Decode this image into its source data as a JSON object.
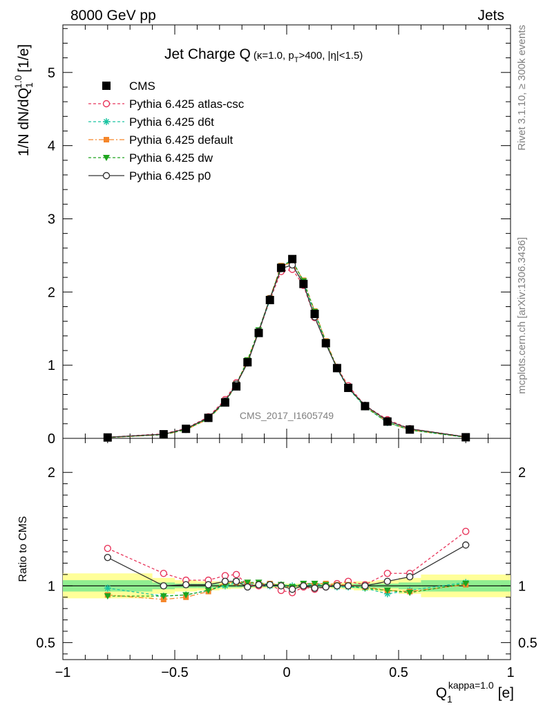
{
  "header": {
    "energy_label": "8000 GeV pp",
    "category_label": "Jets",
    "side_label_top": "Rivet 3.1.10, ≥ 300k events",
    "side_label_bottom": "mcplots.cern.ch [arXiv:1306.3436]",
    "watermark": "CMS_2017_I1605749"
  },
  "chart_data": [
    {
      "type": "scatter",
      "title_main": "Jet Charge Q",
      "title_detail": "(κ=1.0, p",
      "title_sub": "T",
      "title_rest": ">400, |η|<1.5)",
      "ylabel": "1/N dN/dQ",
      "ylabel_sub": "1",
      "ylabel_sup": "1.0",
      "ylabel_unit": "[1/e]",
      "xlim": [
        -1,
        1
      ],
      "ylim": [
        0,
        5.65
      ],
      "yticks": [
        "0",
        "1",
        "2",
        "3",
        "4",
        "5"
      ],
      "x": [
        -0.8,
        -0.55,
        -0.45,
        -0.35,
        -0.275,
        -0.225,
        -0.175,
        -0.125,
        -0.075,
        -0.025,
        0.025,
        0.075,
        0.125,
        0.175,
        0.225,
        0.275,
        0.35,
        0.45,
        0.55,
        0.8
      ],
      "legend": [
        {
          "label": "CMS",
          "color": "#000000",
          "marker": "square",
          "dash": "none"
        },
        {
          "label": "Pythia 6.425 atlas-csc",
          "color": "#e8345a",
          "marker": "circle",
          "dash": "4,3"
        },
        {
          "label": "Pythia 6.425 d6t",
          "color": "#19c3a0",
          "marker": "star",
          "dash": "4,3"
        },
        {
          "label": "Pythia 6.425 default",
          "color": "#f5862a",
          "marker": "square",
          "dash": "7,3,2,3"
        },
        {
          "label": "Pythia 6.425 dw",
          "color": "#1ea51e",
          "marker": "triangle",
          "dash": "4,3"
        },
        {
          "label": "Pythia 6.425 p0",
          "color": "#333333",
          "marker": "circle",
          "dash": "none"
        }
      ],
      "series": [
        {
          "values": [
            0.012,
            0.056,
            0.13,
            0.28,
            0.49,
            0.71,
            1.04,
            1.44,
            1.89,
            2.33,
            2.45,
            2.11,
            1.7,
            1.3,
            0.96,
            0.69,
            0.44,
            0.23,
            0.12,
            0.015
          ]
        },
        {
          "values": [
            0.016,
            0.062,
            0.136,
            0.294,
            0.53,
            0.76,
            1.04,
            1.45,
            1.89,
            2.28,
            2.31,
            2.09,
            1.65,
            1.3,
            0.97,
            0.72,
            0.45,
            0.255,
            0.133,
            0.022
          ]
        },
        {
          "values": [
            0.012,
            0.052,
            0.12,
            0.27,
            0.49,
            0.73,
            1.06,
            1.46,
            1.89,
            2.35,
            2.44,
            2.13,
            1.72,
            1.3,
            0.95,
            0.68,
            0.43,
            0.215,
            0.115,
            0.0155
          ]
        },
        {
          "values": [
            0.011,
            0.049,
            0.117,
            0.266,
            0.5,
            0.73,
            1.07,
            1.47,
            1.92,
            2.36,
            2.4,
            2.16,
            1.74,
            1.33,
            0.97,
            0.7,
            0.44,
            0.22,
            0.115,
            0.0152
          ]
        },
        {
          "values": [
            0.011,
            0.051,
            0.119,
            0.27,
            0.5,
            0.74,
            1.07,
            1.48,
            1.91,
            2.35,
            2.43,
            2.15,
            1.73,
            1.32,
            0.96,
            0.69,
            0.43,
            0.22,
            0.113,
            0.0155
          ]
        },
        {
          "values": [
            0.015,
            0.056,
            0.131,
            0.283,
            0.51,
            0.74,
            1.03,
            1.46,
            1.91,
            2.32,
            2.37,
            2.11,
            1.66,
            1.29,
            0.96,
            0.69,
            0.45,
            0.24,
            0.13,
            0.02
          ]
        }
      ]
    },
    {
      "type": "scatter",
      "ylabel": "Ratio to CMS",
      "xlabel": "Q",
      "xlabel_sub": "1",
      "xlabel_sup": "kappa=1.0",
      "xlabel_unit": "[e]",
      "xlim": [
        -1,
        1
      ],
      "ylim": [
        0.35,
        2.3
      ],
      "xticks": [
        "−1",
        "−0.5",
        "0",
        "0.5",
        "1"
      ],
      "yticks": [
        "0.5",
        "1",
        "2"
      ],
      "band_edges": [
        -1,
        -0.6,
        -0.5,
        -0.4,
        -0.3,
        -0.25,
        -0.2,
        -0.15,
        -0.1,
        -0.05,
        0,
        0.05,
        0.1,
        0.15,
        0.2,
        0.25,
        0.3,
        0.4,
        0.5,
        0.6,
        1
      ],
      "band_inner": [
        0.05,
        0.03,
        0.02,
        0.02,
        0.015,
        0.015,
        0.012,
        0.012,
        0.01,
        0.01,
        0.01,
        0.01,
        0.012,
        0.012,
        0.015,
        0.015,
        0.02,
        0.02,
        0.03,
        0.05
      ],
      "band_outer": [
        0.11,
        0.07,
        0.05,
        0.04,
        0.03,
        0.025,
        0.02,
        0.02,
        0.02,
        0.02,
        0.02,
        0.02,
        0.02,
        0.02,
        0.025,
        0.03,
        0.04,
        0.05,
        0.07,
        0.1
      ],
      "band_colors": {
        "inner": "#90ee90",
        "outer": "#ffff99"
      },
      "series": [
        {
          "values": [
            1.33,
            1.11,
            1.05,
            1.05,
            1.09,
            1.1,
            1.01,
            1.0,
            1.01,
            0.96,
            0.94,
            0.99,
            0.97,
            0.99,
            1.02,
            1.04,
            1.01,
            1.11,
            1.11,
            1.48
          ]
        },
        {
          "values": [
            0.98,
            0.91,
            0.92,
            0.96,
            1.0,
            1.03,
            1.02,
            1.01,
            1.0,
            1.01,
            1.0,
            1.01,
            1.01,
            1.0,
            0.99,
            0.99,
            0.98,
            0.93,
            0.96,
            1.03
          ]
        },
        {
          "values": [
            0.92,
            0.88,
            0.9,
            0.95,
            1.03,
            1.03,
            1.03,
            1.02,
            1.02,
            1.01,
            0.98,
            1.02,
            1.02,
            1.02,
            1.01,
            1.01,
            0.99,
            0.96,
            0.95,
            1.01
          ]
        },
        {
          "values": [
            0.91,
            0.91,
            0.92,
            0.96,
            1.01,
            1.04,
            1.03,
            1.03,
            1.01,
            1.01,
            0.99,
            1.02,
            1.02,
            1.01,
            1.0,
            1.0,
            0.98,
            0.96,
            0.94,
            1.02
          ]
        },
        {
          "values": [
            1.25,
            1.0,
            1.01,
            1.01,
            1.04,
            1.04,
            0.99,
            1.01,
            1.01,
            1.0,
            0.97,
            1.0,
            0.98,
            0.99,
            1.0,
            1.0,
            1.0,
            1.04,
            1.08,
            1.36
          ]
        }
      ]
    }
  ]
}
